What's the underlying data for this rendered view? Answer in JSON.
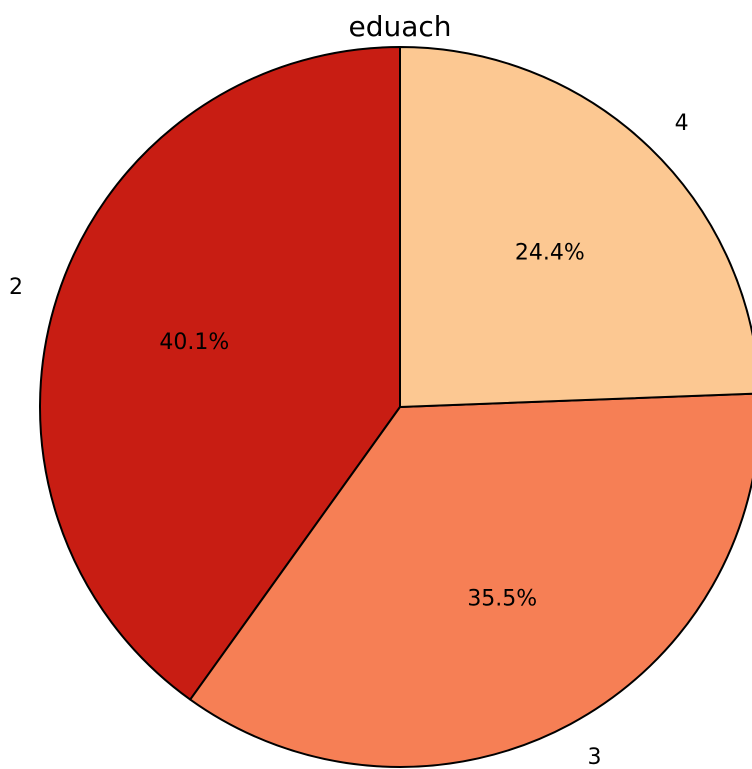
{
  "chart_data": {
    "type": "pie",
    "title": "eduach",
    "slices": [
      {
        "label": "2",
        "value": 40.1,
        "pct_label": "40.1%",
        "color": "#c81d13"
      },
      {
        "label": "3",
        "value": 35.5,
        "pct_label": "35.5%",
        "color": "#f67f55"
      },
      {
        "label": "4",
        "value": 24.4,
        "pct_label": "24.4%",
        "color": "#fcc892"
      }
    ],
    "start": "top",
    "direction": "counterclockwise"
  }
}
